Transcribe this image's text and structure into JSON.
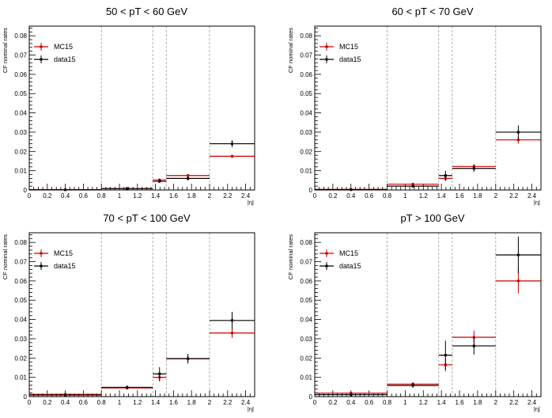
{
  "chart_data": [
    {
      "type": "step",
      "title": "50 < pT < 60 GeV",
      "xlabel": "|η|",
      "ylabel": "CF nominal rates",
      "xlim": [
        0,
        2.5
      ],
      "ylim": [
        0,
        0.085
      ],
      "xticks": [
        "0",
        "0.2",
        "0.4",
        "0.6",
        "0.8",
        "1",
        "1.2",
        "1.4",
        "1.6",
        "1.8",
        "2",
        "2.2",
        "2.4"
      ],
      "yticks": [
        "0",
        "0.01",
        "0.02",
        "0.03",
        "0.04",
        "0.05",
        "0.06",
        "0.07",
        "0.08"
      ],
      "bin_edges": [
        0,
        0.8,
        1.37,
        1.52,
        2.0,
        2.5
      ],
      "legend_placement": "top-left",
      "series": [
        {
          "name": "MC15",
          "color": "#cc0000",
          "values": [
            0.0002,
            0.0008,
            0.0052,
            0.0075,
            0.0175
          ],
          "errors": [
            0.0001,
            0.0002,
            0.0005,
            0.0005,
            0.0008
          ]
        },
        {
          "name": "data15",
          "color": "#000000",
          "values": [
            0.0001,
            0.0007,
            0.0045,
            0.006,
            0.024
          ],
          "errors": [
            0.0001,
            0.0003,
            0.0008,
            0.001,
            0.0018
          ]
        }
      ]
    },
    {
      "type": "step",
      "title": "60 < pT < 70 GeV",
      "xlabel": "|η|",
      "ylabel": "CF nominal rates",
      "xlim": [
        0,
        2.5
      ],
      "ylim": [
        0,
        0.085
      ],
      "xticks": [
        "0",
        "0.2",
        "0.4",
        "0.6",
        "0.8",
        "1",
        "1.2",
        "1.4",
        "1.6",
        "1.8",
        "2",
        "2.2",
        "2.4"
      ],
      "yticks": [
        "0",
        "0.01",
        "0.02",
        "0.03",
        "0.04",
        "0.05",
        "0.06",
        "0.07",
        "0.08"
      ],
      "bin_edges": [
        0,
        0.8,
        1.37,
        1.52,
        2.0,
        2.5
      ],
      "legend_placement": "top-left",
      "series": [
        {
          "name": "MC15",
          "color": "#cc0000",
          "values": [
            0.0003,
            0.003,
            0.006,
            0.0122,
            0.026
          ],
          "errors": [
            0.0001,
            0.0005,
            0.0015,
            0.0012,
            0.002
          ]
        },
        {
          "name": "data15",
          "color": "#000000",
          "values": [
            0.0002,
            0.002,
            0.0075,
            0.0112,
            0.03
          ],
          "errors": [
            0.0001,
            0.0008,
            0.0025,
            0.0018,
            0.0035
          ]
        }
      ]
    },
    {
      "type": "step",
      "title": "70 < pT < 100 GeV",
      "xlabel": "|η|",
      "ylabel": "CF nominal rates",
      "xlim": [
        0,
        2.5
      ],
      "ylim": [
        0,
        0.085
      ],
      "xticks": [
        "0",
        "0.2",
        "0.4",
        "0.6",
        "0.8",
        "1",
        "1.2",
        "1.4",
        "1.6",
        "1.8",
        "2",
        "2.2",
        "2.4"
      ],
      "yticks": [
        "0",
        "0.01",
        "0.02",
        "0.03",
        "0.04",
        "0.05",
        "0.06",
        "0.07",
        "0.08"
      ],
      "bin_edges": [
        0,
        0.8,
        1.37,
        1.52,
        2.0,
        2.5
      ],
      "legend_placement": "top-left",
      "series": [
        {
          "name": "MC15",
          "color": "#cc0000",
          "values": [
            0.0012,
            0.0045,
            0.01,
            0.0197,
            0.033
          ],
          "errors": [
            0.0003,
            0.0008,
            0.0022,
            0.0018,
            0.0025
          ]
        },
        {
          "name": "data15",
          "color": "#000000",
          "values": [
            0.0008,
            0.0048,
            0.0118,
            0.0197,
            0.0395
          ],
          "errors": [
            0.0003,
            0.001,
            0.0035,
            0.0025,
            0.0045
          ]
        }
      ]
    },
    {
      "type": "step",
      "title": "pT > 100 GeV",
      "xlabel": "|η|",
      "ylabel": "CF nominal rates",
      "xlim": [
        0,
        2.5
      ],
      "ylim": [
        0,
        0.085
      ],
      "xticks": [
        "0",
        "0.2",
        "0.4",
        "0.6",
        "0.8",
        "1",
        "1.2",
        "1.4",
        "1.6",
        "1.8",
        "2",
        "2.2",
        "2.4"
      ],
      "yticks": [
        "0",
        "0.01",
        "0.02",
        "0.03",
        "0.04",
        "0.05",
        "0.06",
        "0.07",
        "0.08"
      ],
      "bin_edges": [
        0,
        0.8,
        1.37,
        1.52,
        2.0,
        2.5
      ],
      "legend_placement": "top-left",
      "series": [
        {
          "name": "MC15",
          "color": "#cc0000",
          "values": [
            0.0018,
            0.0065,
            0.0165,
            0.0308,
            0.06
          ],
          "errors": [
            0.0004,
            0.001,
            0.0035,
            0.0035,
            0.0065
          ]
        },
        {
          "name": "data15",
          "color": "#000000",
          "values": [
            0.001,
            0.0058,
            0.0215,
            0.0263,
            0.0735
          ],
          "errors": [
            0.0004,
            0.0012,
            0.0075,
            0.0045,
            0.0095
          ]
        }
      ]
    }
  ]
}
